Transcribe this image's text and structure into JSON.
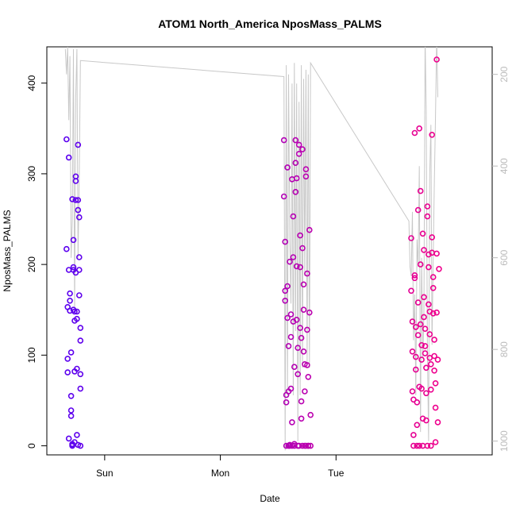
{
  "chart_data": {
    "type": "scatter",
    "title": "ATOM1 North_America NposMass_PALMS",
    "xlabel": "Date",
    "ylabel": "NposMass_PALMS",
    "x_tick_labels": [
      "Sun",
      "Mon",
      "Tue"
    ],
    "y_ticks": [
      0,
      100,
      200,
      300,
      400
    ],
    "y_tick_labels": [
      "0",
      "100",
      "200",
      "300",
      "400"
    ],
    "y2_ticks": [
      200,
      400,
      600,
      800,
      1000
    ],
    "y2_tick_labels": [
      "200",
      "400",
      "600",
      "800",
      "1000"
    ],
    "xlim": [
      -1.5,
      2.35
    ],
    "ylim": [
      -10,
      440
    ],
    "y2lim": [
      1030,
      140
    ],
    "y2_axis_color": "#bbbbbb",
    "line_color": "#c8c8c8",
    "point_color_start": "#5a00f0",
    "point_color_end": "#f0008c",
    "grid": false,
    "legend": "none",
    "series": [
      {
        "x": [
          -1.33,
          -1.33,
          -1.32,
          -1.32,
          -1.32,
          -1.31,
          -1.31,
          -1.31,
          -1.3,
          -1.3,
          -1.3,
          -1.29,
          -1.29,
          -1.29,
          -1.29,
          -1.28,
          -1.28,
          -1.28,
          -1.28,
          -1.27,
          -1.27,
          -1.27,
          -1.27,
          -1.26,
          -1.26,
          -1.26,
          -1.26,
          -1.25,
          -1.25,
          -1.25,
          -1.25,
          -1.24,
          -1.24,
          -1.24,
          -1.24,
          -1.23,
          -1.23,
          -1.23,
          -1.23,
          -1.22,
          -1.22,
          -1.22,
          -1.22,
          -1.21,
          -1.21,
          -1.21,
          -1.21,
          -1.21
        ],
        "y": [
          338,
          217,
          153,
          96,
          81,
          8,
          318,
          194,
          168,
          160,
          149,
          103,
          55,
          39,
          33,
          2,
          1,
          0,
          272,
          227,
          197,
          194,
          150,
          148,
          138,
          82,
          4,
          297,
          292,
          271,
          191,
          148,
          140,
          85,
          12,
          1,
          332,
          271,
          260,
          252,
          208,
          194,
          166,
          130,
          116,
          79,
          63,
          0
        ]
      },
      {
        "x": [
          0.55,
          0.55,
          0.56,
          0.56,
          0.56,
          0.57,
          0.57,
          0.57,
          0.58,
          0.58,
          0.58,
          0.59,
          0.59,
          0.59,
          0.6,
          0.6,
          0.6,
          0.61,
          0.61,
          0.61,
          0.62,
          0.62,
          0.62,
          0.63,
          0.63,
          0.63,
          0.64,
          0.64,
          0.64,
          0.65,
          0.65,
          0.65,
          0.66,
          0.66,
          0.66,
          0.67,
          0.67,
          0.67,
          0.68,
          0.68,
          0.68,
          0.69,
          0.69,
          0.69,
          0.7,
          0.7,
          0.7,
          0.71,
          0.71,
          0.71,
          0.72,
          0.72,
          0.72,
          0.73,
          0.73,
          0.73,
          0.74,
          0.74,
          0.74,
          0.75,
          0.75,
          0.75,
          0.76,
          0.76,
          0.76,
          0.77,
          0.77,
          0.78,
          0.78
        ],
        "y": [
          337,
          275,
          225,
          171,
          160,
          56,
          48,
          0,
          307,
          176,
          141,
          110,
          60,
          0,
          1,
          0,
          203,
          145,
          120,
          63,
          26,
          0,
          294,
          253,
          208,
          137,
          87,
          2,
          0,
          337,
          312,
          280,
          295,
          198,
          139,
          108,
          79,
          0,
          0,
          332,
          322,
          232,
          197,
          130,
          119,
          49,
          30,
          0,
          327,
          218,
          178,
          150,
          104,
          90,
          60,
          0,
          0,
          305,
          297,
          190,
          128,
          89,
          76,
          0,
          0,
          238,
          147,
          34,
          0
        ]
      },
      {
        "x": [
          1.65,
          1.65,
          1.66,
          1.66,
          1.66,
          1.67,
          1.67,
          1.67,
          1.68,
          1.68,
          1.68,
          1.69,
          1.69,
          1.69,
          1.7,
          1.7,
          1.7,
          1.71,
          1.71,
          1.71,
          1.72,
          1.72,
          1.72,
          1.73,
          1.73,
          1.73,
          1.74,
          1.74,
          1.74,
          1.75,
          1.75,
          1.75,
          1.76,
          1.76,
          1.76,
          1.77,
          1.77,
          1.77,
          1.78,
          1.78,
          1.78,
          1.79,
          1.79,
          1.79,
          1.8,
          1.8,
          1.8,
          1.81,
          1.81,
          1.81,
          1.82,
          1.82,
          1.82,
          1.83,
          1.83,
          1.83,
          1.84,
          1.84,
          1.84,
          1.85,
          1.85,
          1.85,
          1.86,
          1.86,
          1.86,
          1.87,
          1.87,
          1.87,
          1.88,
          1.88,
          1.89
        ],
        "y": [
          229,
          171,
          137,
          104,
          60,
          51,
          12,
          0,
          345,
          188,
          185,
          131,
          98,
          84,
          48,
          23,
          0,
          260,
          158,
          122,
          65,
          0,
          350,
          281,
          200,
          134,
          111,
          95,
          63,
          30,
          0,
          234,
          216,
          164,
          142,
          129,
          110,
          102,
          86,
          58,
          28,
          0,
          264,
          253,
          211,
          197,
          156,
          148,
          123,
          97,
          90,
          62,
          0,
          343,
          230,
          213,
          186,
          174,
          146,
          117,
          99,
          83,
          69,
          42,
          4,
          426,
          212,
          147,
          95,
          26,
          195
        ]
      }
    ],
    "line_series": {
      "x": [
        -1.34,
        -1.33,
        -1.32,
        -1.31,
        -1.3,
        -1.29,
        -1.28,
        -1.27,
        -1.26,
        -1.25,
        -1.24,
        -1.23,
        -1.22,
        -1.21,
        0.55,
        0.56,
        0.57,
        0.58,
        0.59,
        0.6,
        0.61,
        0.62,
        0.63,
        0.64,
        0.65,
        0.66,
        0.67,
        0.68,
        0.69,
        0.7,
        0.71,
        0.72,
        0.73,
        0.74,
        0.75,
        0.76,
        0.77,
        0.78,
        1.63,
        1.64,
        1.65,
        1.66,
        1.67,
        1.68,
        1.69,
        1.7,
        1.71,
        1.72,
        1.73,
        1.74,
        1.75,
        1.76,
        1.77,
        1.78,
        1.79,
        1.8,
        1.81,
        1.82,
        1.83,
        1.84,
        1.85,
        1.86,
        1.87,
        1.88
      ],
      "y": [
        145,
        200,
        140,
        300,
        160,
        600,
        520,
        145,
        720,
        250,
        145,
        600,
        430,
        170,
        205,
        1020,
        180,
        900,
        200,
        560,
        700,
        220,
        900,
        175,
        760,
        220,
        1000,
        260,
        900,
        180,
        840,
        210,
        640,
        190,
        830,
        200,
        840,
        175,
        520,
        620,
        640,
        500,
        780,
        680,
        900,
        560,
        620,
        400,
        980,
        600,
        820,
        720,
        120,
        280,
        800,
        1000,
        420,
        310,
        790,
        600,
        440,
        290,
        120,
        250
      ]
    }
  }
}
